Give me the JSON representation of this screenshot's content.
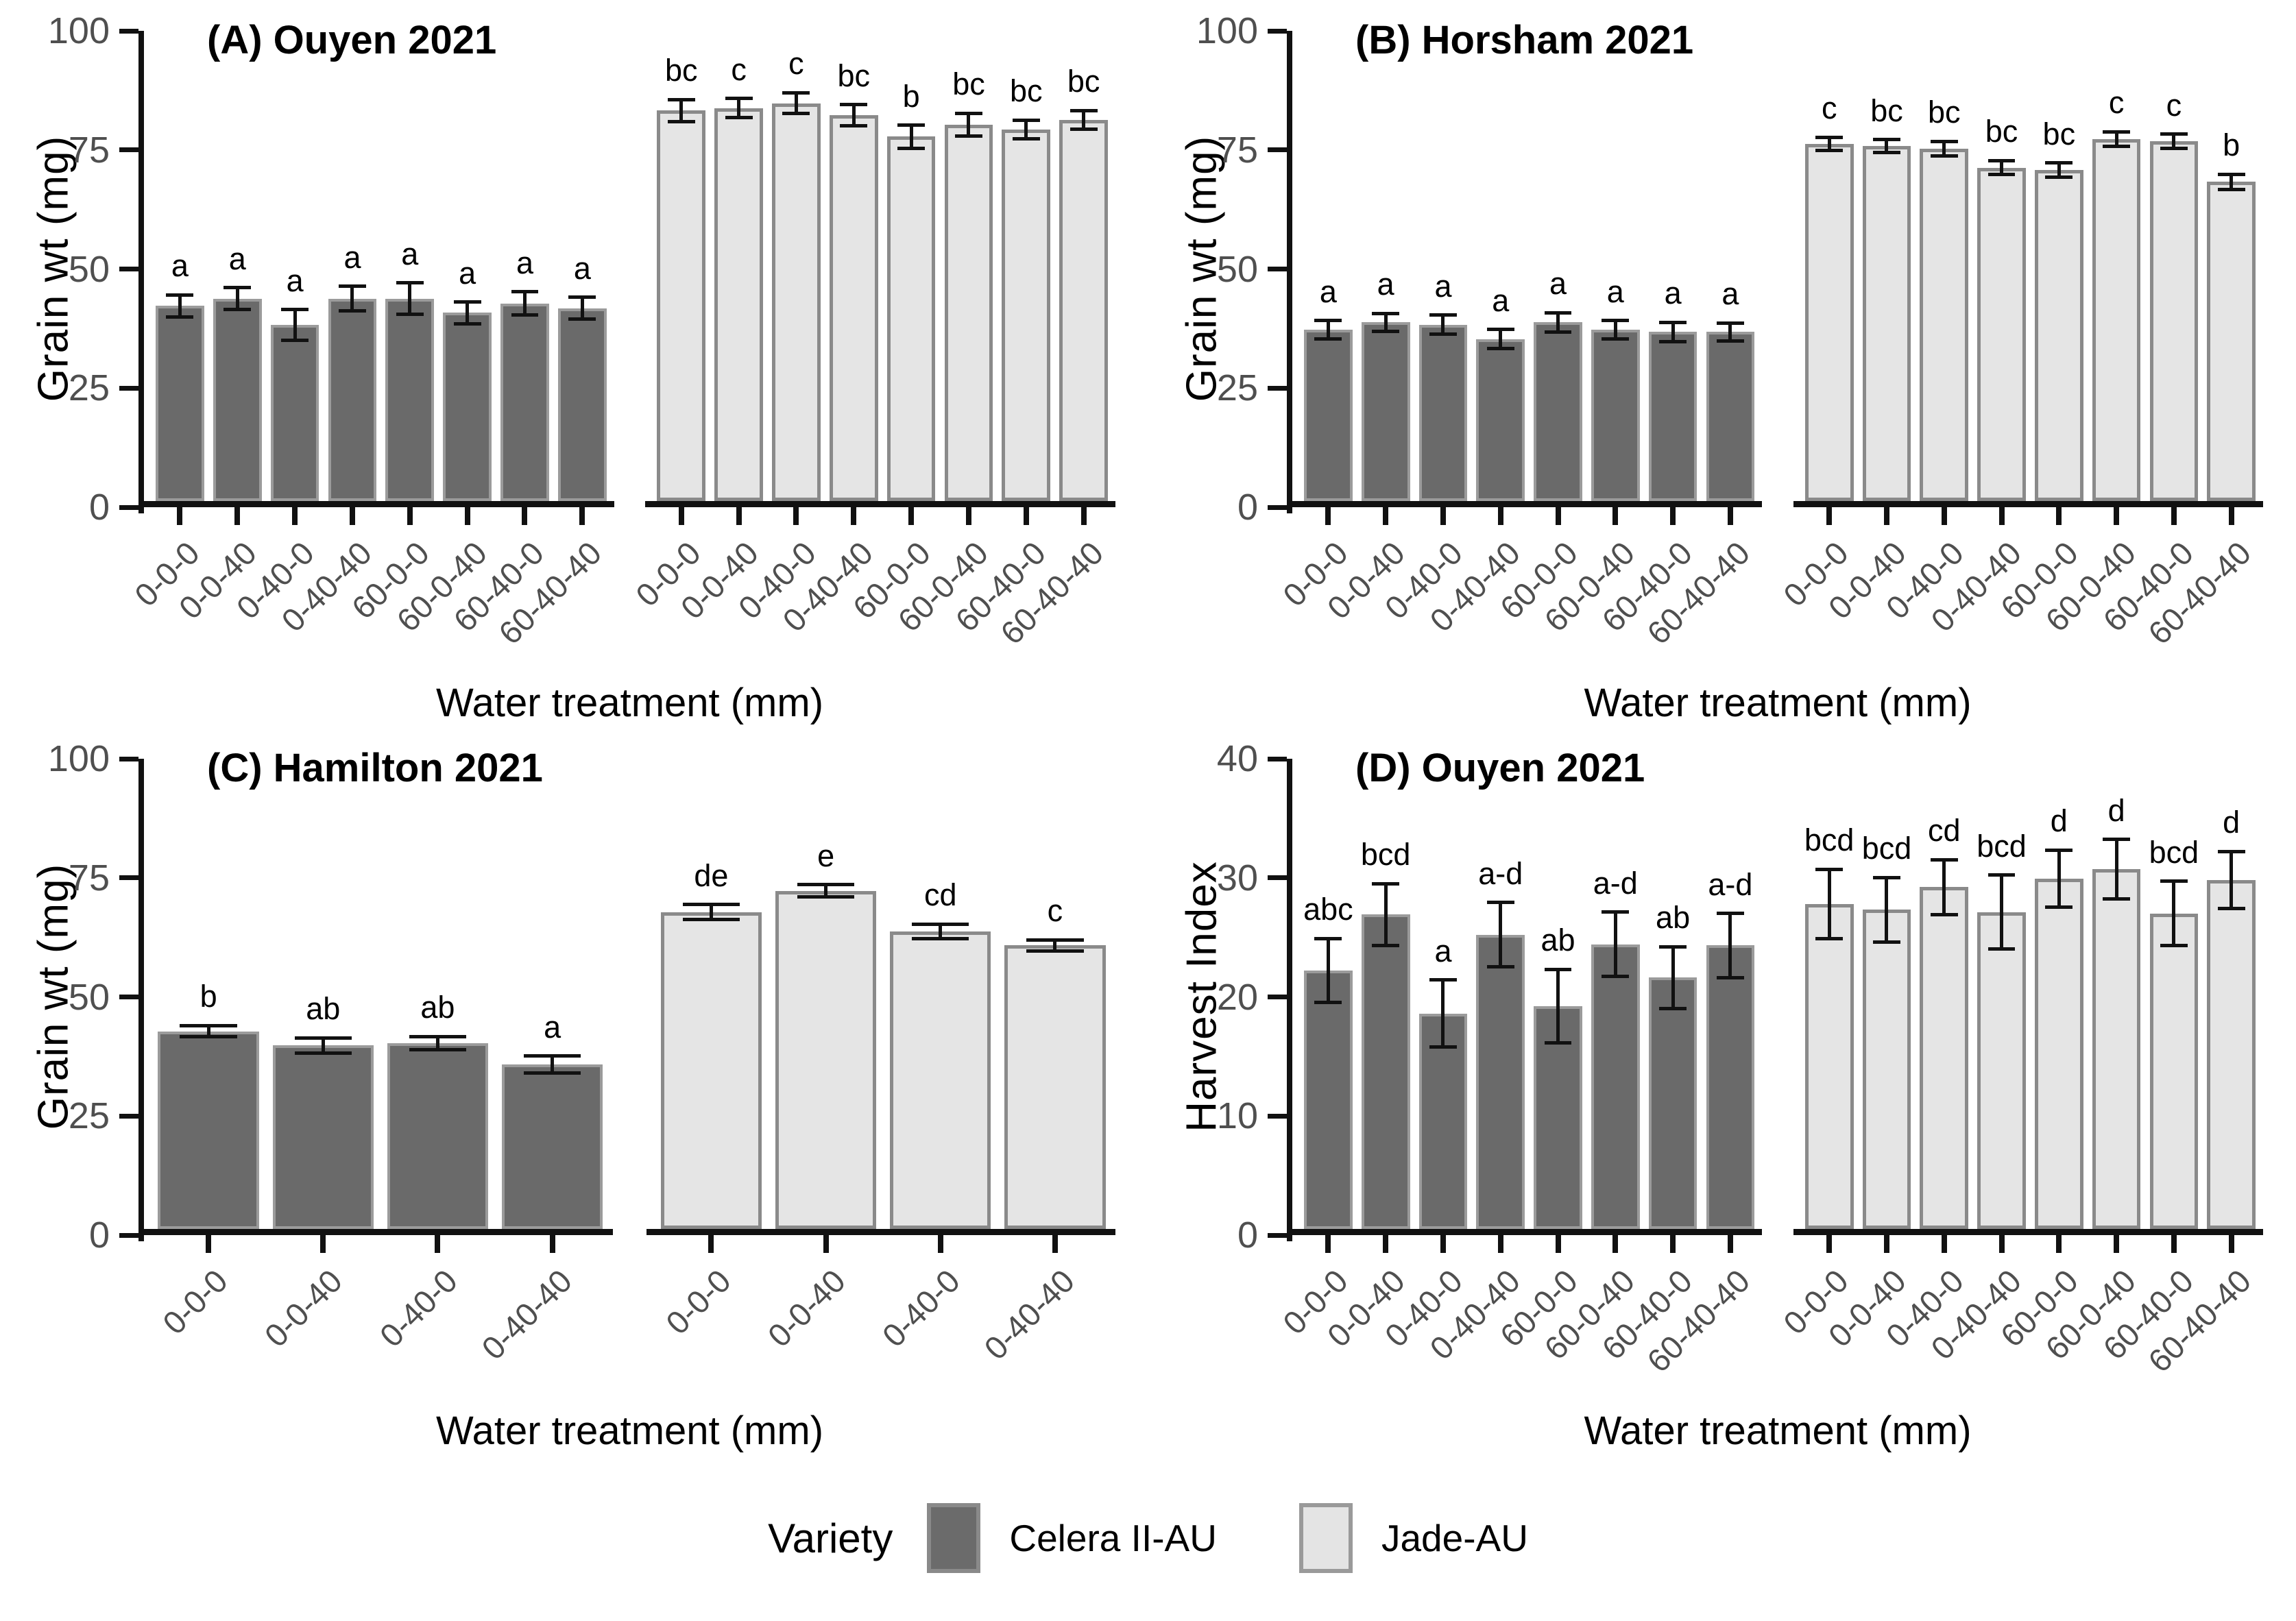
{
  "figure": {
    "description": "Four-panel bar chart of grain weight and harvest index by water treatment for two lentil varieties"
  },
  "legend": {
    "title": "Variety",
    "entries": [
      {
        "label": "Celera II-AU",
        "fill": "#6b6b6b",
        "border": "#8a8a8a"
      },
      {
        "label": "Jade-AU",
        "fill": "#e4e4e4",
        "border": "#9a9a9a"
      }
    ]
  },
  "chart_data": [
    {
      "id": "A",
      "type": "bar",
      "title": "(A) Ouyen 2021",
      "xlabel": "Water treatment (mm)",
      "ylabel": "Grain wt (mg)",
      "ylim": [
        0,
        100
      ],
      "yticks": [
        0,
        25,
        50,
        75,
        100
      ],
      "categories": [
        "0-0-0",
        "0-0-40",
        "0-40-0",
        "0-40-40",
        "60-0-0",
        "60-0-40",
        "60-40-0",
        "60-40-40"
      ],
      "series": [
        {
          "name": "Celera II-AU",
          "fill": "#6a6a6a",
          "border": "#9b9b9b",
          "values": [
            41,
            42.5,
            37,
            42.5,
            42.5,
            39.5,
            41.5,
            40.5
          ],
          "errors": [
            2.3,
            2.3,
            3.2,
            2.6,
            3.3,
            2.3,
            2.4,
            2.3
          ],
          "letters": [
            "a",
            "a",
            "a",
            "a",
            "a",
            "a",
            "a",
            "a"
          ]
        },
        {
          "name": "Jade-AU",
          "fill": "#e5e5e5",
          "border": "#8a8a8a",
          "values": [
            82,
            82.5,
            83.5,
            81,
            76.5,
            79,
            78,
            80
          ],
          "errors": [
            2.3,
            2.0,
            2.2,
            2.2,
            2.4,
            2.4,
            2.0,
            2.0
          ],
          "letters": [
            "bc",
            "c",
            "c",
            "bc",
            "b",
            "bc",
            "bc",
            "bc"
          ]
        }
      ]
    },
    {
      "id": "B",
      "type": "bar",
      "title": "(B) Horsham 2021",
      "xlabel": "Water treatment (mm)",
      "ylabel": "Grain wt (mg)",
      "ylim": [
        0,
        100
      ],
      "yticks": [
        0,
        25,
        50,
        75,
        100
      ],
      "categories": [
        "0-0-0",
        "0-0-40",
        "0-40-0",
        "0-40-40",
        "60-0-0",
        "60-0-40",
        "60-40-0",
        "60-40-40"
      ],
      "series": [
        {
          "name": "Celera II-AU",
          "fill": "#6a6a6a",
          "border": "#9b9b9b",
          "values": [
            36,
            37.5,
            37,
            34,
            37.5,
            36,
            35.5,
            35.5
          ],
          "errors": [
            1.9,
            1.9,
            2.0,
            2.0,
            2.0,
            1.9,
            2.0,
            1.9
          ],
          "letters": [
            "a",
            "a",
            "a",
            "a",
            "a",
            "a",
            "a",
            "a"
          ]
        },
        {
          "name": "Jade-AU",
          "fill": "#e5e5e5",
          "border": "#8a8a8a",
          "values": [
            75,
            74.5,
            74,
            70,
            69.5,
            76,
            75.5,
            67
          ],
          "errors": [
            1.4,
            1.4,
            1.5,
            1.5,
            1.5,
            1.5,
            1.5,
            1.6
          ],
          "letters": [
            "c",
            "bc",
            "bc",
            "bc",
            "bc",
            "c",
            "c",
            "b"
          ]
        }
      ]
    },
    {
      "id": "C",
      "type": "bar",
      "title": "(C) Hamilton 2021",
      "xlabel": "Water treatment (mm)",
      "ylabel": "Grain wt (mg)",
      "ylim": [
        0,
        100
      ],
      "yticks": [
        0,
        25,
        50,
        75,
        100
      ],
      "categories": [
        "0-0-0",
        "0-0-40",
        "0-40-0",
        "0-40-40"
      ],
      "series": [
        {
          "name": "Celera II-AU",
          "fill": "#6a6a6a",
          "border": "#9b9b9b",
          "values": [
            41.5,
            38.5,
            39,
            34.5
          ],
          "errors": [
            1.2,
            1.6,
            1.4,
            1.8
          ],
          "letters": [
            "b",
            "ab",
            "ab",
            "a"
          ]
        },
        {
          "name": "Jade-AU",
          "fill": "#e5e5e5",
          "border": "#8a8a8a",
          "values": [
            66.5,
            71,
            62.5,
            59.5
          ],
          "errors": [
            1.6,
            1.3,
            1.5,
            1.2
          ],
          "letters": [
            "de",
            "e",
            "cd",
            "c"
          ]
        }
      ]
    },
    {
      "id": "D",
      "type": "bar",
      "title": "(D) Ouyen 2021",
      "xlabel": "Water treatment (mm)",
      "ylabel": "Harvest Index",
      "ylim": [
        0,
        40
      ],
      "yticks": [
        0,
        10,
        20,
        30,
        40
      ],
      "categories": [
        "0-0-0",
        "0-0-40",
        "0-40-0",
        "0-40-40",
        "60-0-0",
        "60-0-40",
        "60-40-0",
        "60-40-40"
      ],
      "series": [
        {
          "name": "Celera II-AU",
          "fill": "#6a6a6a",
          "border": "#9b9b9b",
          "values": [
            21.7,
            26.4,
            18.1,
            24.7,
            18.7,
            23.9,
            21.1,
            23.8
          ],
          "errors": [
            2.7,
            2.6,
            2.8,
            2.7,
            3.1,
            2.7,
            2.6,
            2.7
          ],
          "letters": [
            "abc",
            "bcd",
            "a",
            "a-d",
            "ab",
            "a-d",
            "ab",
            "a-d"
          ]
        },
        {
          "name": "Jade-AU",
          "fill": "#e5e5e5",
          "border": "#8a8a8a",
          "values": [
            27.3,
            26.8,
            28.7,
            26.6,
            29.4,
            30.2,
            26.5,
            29.3
          ],
          "errors": [
            2.9,
            2.7,
            2.3,
            3.1,
            2.4,
            2.5,
            2.7,
            2.4
          ],
          "letters": [
            "bcd",
            "bcd",
            "cd",
            "bcd",
            "d",
            "d",
            "bcd",
            "d"
          ]
        }
      ]
    }
  ]
}
